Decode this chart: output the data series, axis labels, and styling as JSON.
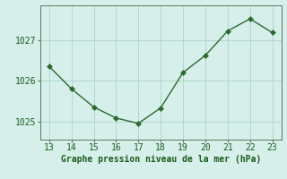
{
  "x": [
    13,
    14,
    15,
    16,
    17,
    18,
    19,
    20,
    21,
    22,
    23
  ],
  "y": [
    1026.35,
    1025.8,
    1025.35,
    1025.08,
    1024.95,
    1025.33,
    1026.2,
    1026.62,
    1027.22,
    1027.52,
    1027.18
  ],
  "xlim_min": 12.6,
  "xlim_max": 23.4,
  "ylim_min": 1024.55,
  "ylim_max": 1027.85,
  "yticks": [
    1025,
    1026,
    1027
  ],
  "xticks": [
    13,
    14,
    15,
    16,
    17,
    18,
    19,
    20,
    21,
    22,
    23
  ],
  "line_color": "#2d6a2d",
  "marker_color": "#2d6a2d",
  "bg_color": "#d6efeb",
  "grid_color": "#b0d8cc",
  "xlabel": "Graphe pression niveau de la mer (hPa)",
  "xlabel_color": "#1a5c1a",
  "tick_color": "#1a5c1a",
  "spine_color": "#5a7a5a",
  "tick_fontsize": 7,
  "xlabel_fontsize": 7
}
